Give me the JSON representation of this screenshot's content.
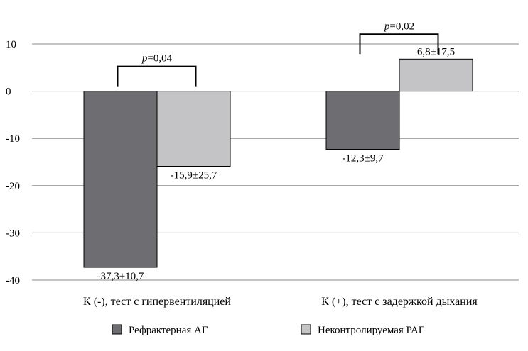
{
  "chart_data": {
    "type": "bar",
    "title": "",
    "xlabel": "",
    "ylabel": "",
    "ylim": [
      -40,
      10
    ],
    "yticks": [
      10,
      0,
      -10,
      -20,
      -30,
      -40
    ],
    "grid": true,
    "legend_position": "bottom",
    "categories": [
      "К (-), тест с гипервентиляцией",
      "К (+), тест с задержкой дыхания"
    ],
    "series": [
      {
        "name": "Рефрактерная АГ",
        "color": "#6e6e72",
        "values": [
          -37.3,
          -12.3
        ],
        "labels": [
          "-37,3±10,7",
          "-12,3±9,7"
        ]
      },
      {
        "name": "Неконтролируемая РАГ",
        "color": "#c4c4c6",
        "values": [
          -15.9,
          6.8
        ],
        "labels": [
          "-15,9±25,7",
          "6,8±17,5"
        ]
      }
    ],
    "annotations": [
      {
        "category_index": 0,
        "prefix": "p",
        "text": "=0,04"
      },
      {
        "category_index": 1,
        "prefix": "p",
        "text": "=0,02"
      }
    ]
  }
}
